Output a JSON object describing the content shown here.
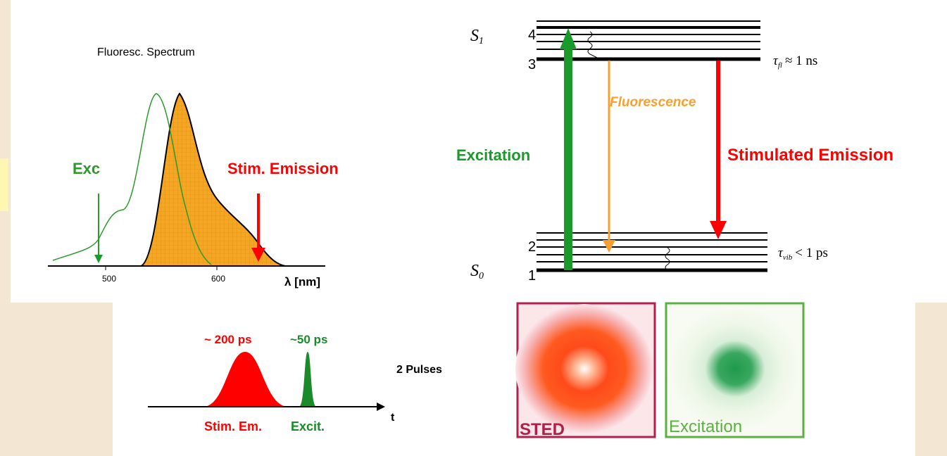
{
  "spectrum": {
    "title": "Fluoresc. Spectrum",
    "excitation_label": "Exc",
    "depletion_label": "Stim. Emission",
    "axis_ticks": [
      "500",
      "600"
    ],
    "axis_label": "λ [nm]"
  },
  "levels": {
    "upper": {
      "symbol": "S",
      "index": "1"
    },
    "lower": {
      "symbol": "S",
      "index": "0"
    },
    "numbers": [
      "4",
      "3",
      "2",
      "1"
    ],
    "upper_lifetime": {
      "symbol": "τ",
      "index": "fl",
      "relation": "≈ 1 ns"
    },
    "lower_lifetime": {
      "symbol": "τ",
      "index": "vib",
      "relation": "< 1 ps"
    },
    "transitions": [
      "Excitation",
      "Fluorescence",
      "Stimulated Emission"
    ]
  },
  "pulses": {
    "depletion_width": "~ 200 ps",
    "excitation_width": "~50 ps",
    "caption": "2 Pulses",
    "axis_label": "t",
    "depletion_name": "Stim. Em.",
    "excitation_name": "Excit."
  },
  "images": [
    "STED",
    "Excitation"
  ]
}
